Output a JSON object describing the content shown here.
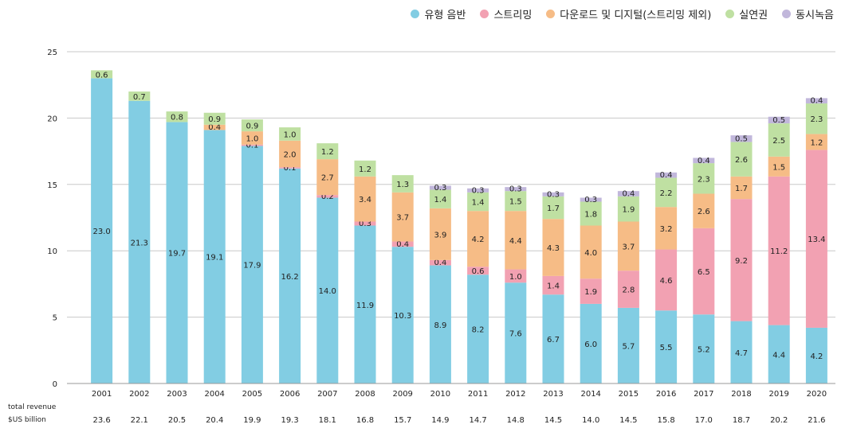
{
  "chart_data": {
    "type": "bar",
    "stacked": true,
    "categories": [
      "2001",
      "2002",
      "2003",
      "2004",
      "2005",
      "2006",
      "2007",
      "2008",
      "2009",
      "2010",
      "2011",
      "2012",
      "2013",
      "2014",
      "2015",
      "2016",
      "2017",
      "2018",
      "2019",
      "2020"
    ],
    "series": [
      {
        "name": "유형 음반",
        "color": "#82cde3",
        "values": [
          23.0,
          21.3,
          19.7,
          19.1,
          17.9,
          16.2,
          14.0,
          11.9,
          10.3,
          8.9,
          8.2,
          7.6,
          6.7,
          6.0,
          5.7,
          5.5,
          5.2,
          4.7,
          4.4,
          4.2
        ],
        "labels": [
          "23.0",
          "21.3",
          "19.7",
          "19.1",
          "17.9",
          "16.2",
          "14.0",
          "11.9",
          "10.3",
          "8.9",
          "8.2",
          "7.6",
          "6.7",
          "6.0",
          "5.7",
          "5.5",
          "5.2",
          "4.7",
          "4.4",
          "4.2"
        ]
      },
      {
        "name": "스트리밍",
        "color": "#f2a1b2",
        "values": [
          0,
          0,
          0,
          0,
          0.1,
          0.1,
          0.2,
          0.3,
          0.4,
          0.4,
          0.6,
          1.0,
          1.4,
          1.9,
          2.8,
          4.6,
          6.5,
          9.2,
          11.2,
          13.4
        ],
        "labels": [
          "",
          "",
          "",
          "",
          "0.1",
          "0.1",
          "0.2",
          "0.3",
          "0.4",
          "0.4",
          "0.6",
          "1.0",
          "1.4",
          "1.9",
          "2.8",
          "4.6",
          "6.5",
          "9.2",
          "11.2",
          "13.4"
        ]
      },
      {
        "name": "다운로드 및 디지털(스트리밍 제외)",
        "color": "#f6bc86",
        "values": [
          0,
          0,
          0,
          0.4,
          1.0,
          2.0,
          2.7,
          3.4,
          3.7,
          3.9,
          4.2,
          4.4,
          4.3,
          4.0,
          3.7,
          3.2,
          2.6,
          1.7,
          1.5,
          1.2
        ],
        "labels": [
          "",
          "",
          "",
          "0.4",
          "1.0",
          "2.0",
          "2.7",
          "3.4",
          "3.7",
          "3.9",
          "4.2",
          "4.4",
          "4.3",
          "4.0",
          "3.7",
          "3.2",
          "2.6",
          "1.7",
          "1.5",
          "1.2"
        ]
      },
      {
        "name": "실연권",
        "color": "#bfe0a2",
        "values": [
          0.6,
          0.7,
          0.8,
          0.9,
          0.9,
          1.0,
          1.2,
          1.2,
          1.3,
          1.4,
          1.4,
          1.5,
          1.7,
          1.8,
          1.9,
          2.2,
          2.3,
          2.6,
          2.5,
          2.3
        ],
        "labels": [
          "0.6",
          "0.7",
          "0.8",
          "0.9",
          "0.9",
          "1.0",
          "1.2",
          "1.2",
          "1.3",
          "1.4",
          "1.4",
          "1.5",
          "1.7",
          "1.8",
          "1.9",
          "2.2",
          "2.3",
          "2.6",
          "2.5",
          "2.3"
        ]
      },
      {
        "name": "동시녹음",
        "color": "#c1b7db",
        "values": [
          0,
          0,
          0,
          0,
          0,
          0,
          0,
          0,
          0,
          0.3,
          0.3,
          0.3,
          0.3,
          0.3,
          0.4,
          0.4,
          0.4,
          0.5,
          0.5,
          0.4
        ],
        "labels": [
          "",
          "",
          "",
          "",
          "",
          "",
          "",
          "",
          "",
          "0.3",
          "0.3",
          "0.3",
          "0.3",
          "0.3",
          "0.4",
          "0.4",
          "0.4",
          "0.5",
          "0.5",
          "0.4"
        ]
      }
    ],
    "ylim": [
      0,
      25
    ],
    "yticks": [
      "0",
      "5",
      "10",
      "15",
      "20",
      "25"
    ],
    "grid": true,
    "legend": "top-right",
    "total_label_1": "total revenue",
    "total_label_2": "$US billion",
    "totals": [
      "23.6",
      "22.1",
      "20.5",
      "20.4",
      "19.9",
      "19.3",
      "18.1",
      "16.8",
      "15.7",
      "14.9",
      "14.7",
      "14.8",
      "14.5",
      "14.0",
      "14.5",
      "15.8",
      "17.0",
      "18.7",
      "20.2",
      "21.6"
    ]
  }
}
